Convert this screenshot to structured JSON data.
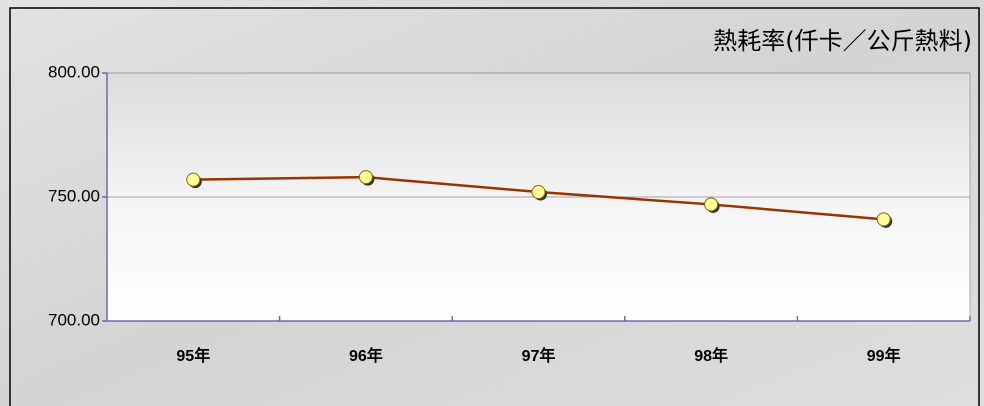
{
  "chart_data": {
    "type": "line",
    "title": "熱耗率(仟卡／公斤熱料)",
    "categories": [
      "95年",
      "96年",
      "97年",
      "98年",
      "99年"
    ],
    "values": [
      757,
      758,
      752,
      747,
      741
    ],
    "color": "#993300",
    "marker_color": "#ffff99",
    "ylim": [
      700,
      800
    ],
    "yticks": [
      {
        "value": 700,
        "label": "700.00"
      },
      {
        "value": 750,
        "label": "750.00"
      },
      {
        "value": 800,
        "label": "800.00"
      }
    ],
    "grid": true
  }
}
